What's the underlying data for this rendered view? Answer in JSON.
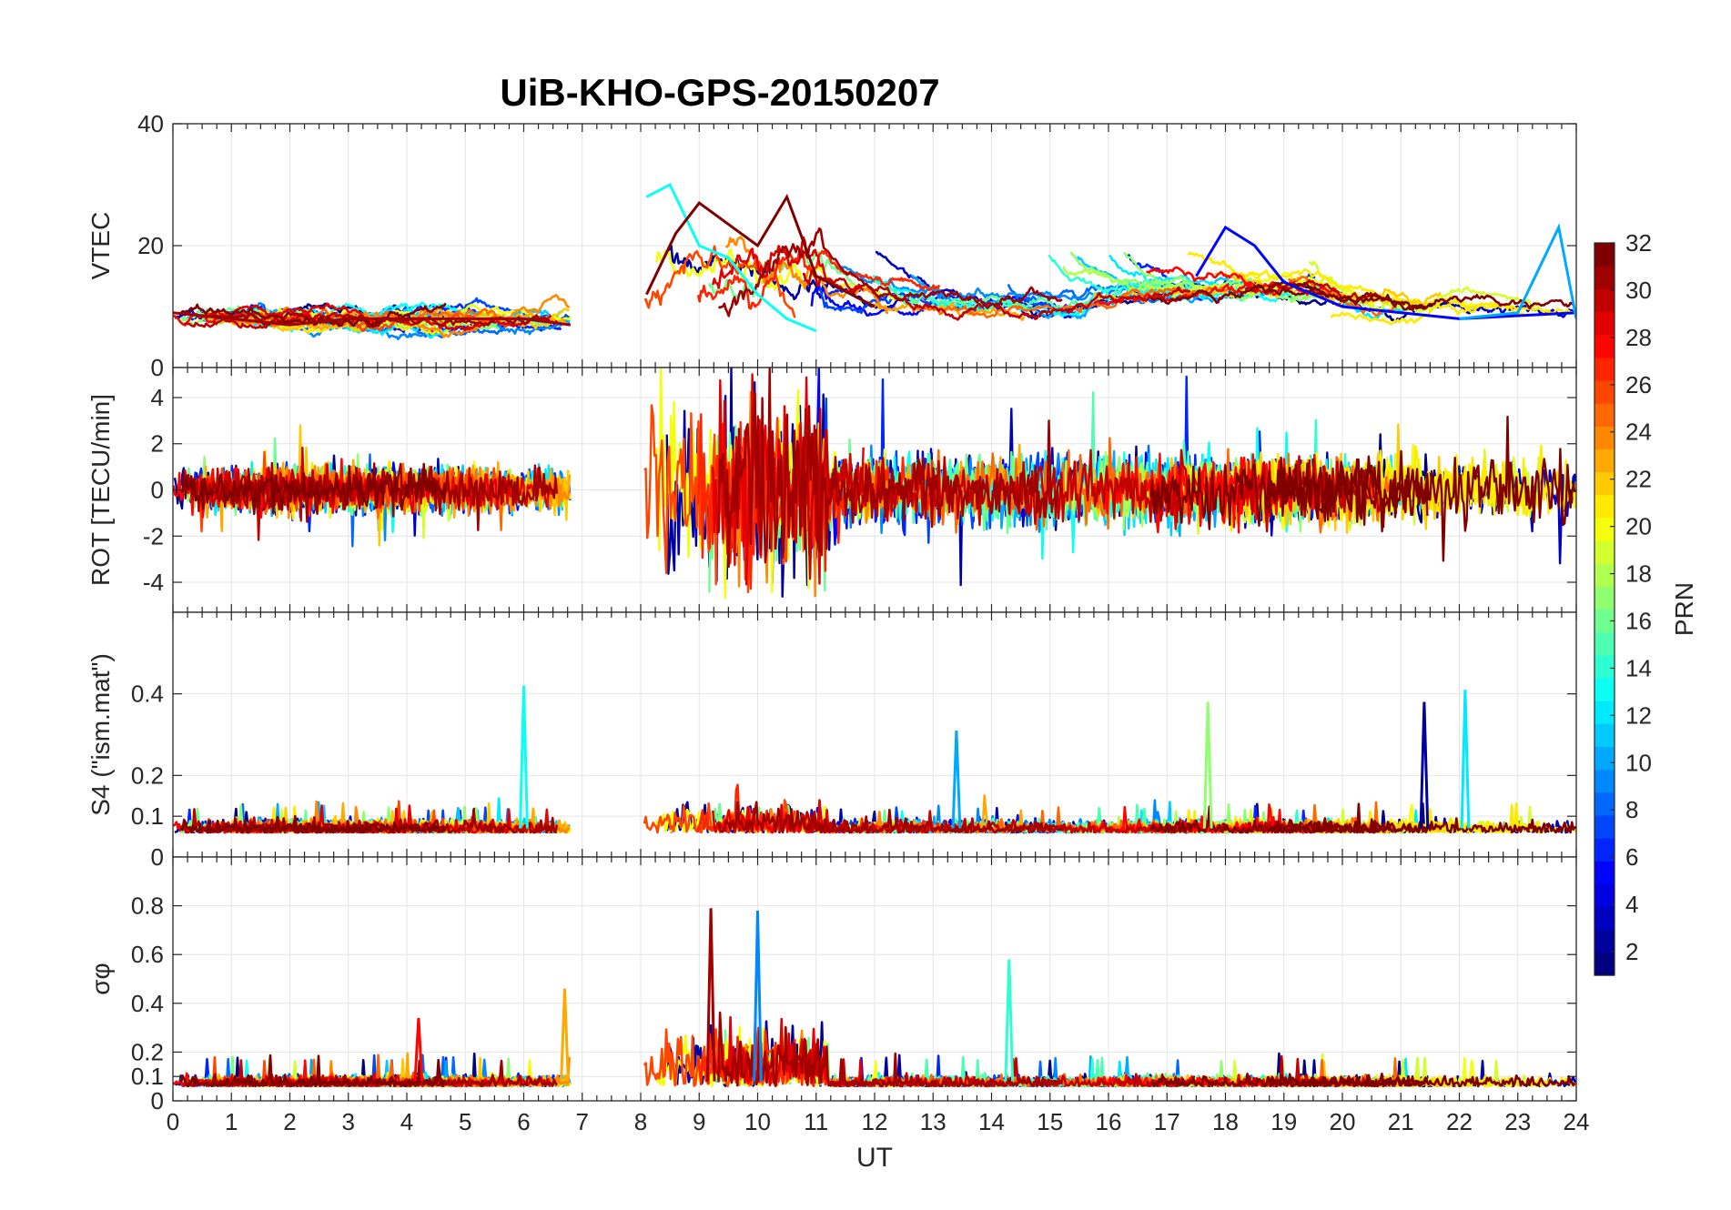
{
  "figure": {
    "title": "UiB-KHO-GPS-20150207",
    "xlabel": "UT",
    "x_ticks": [
      "0",
      "1",
      "2",
      "3",
      "4",
      "5",
      "6",
      "7",
      "8",
      "9",
      "10",
      "11",
      "12",
      "13",
      "14",
      "15",
      "16",
      "17",
      "18",
      "19",
      "20",
      "21",
      "22",
      "23",
      "24"
    ]
  },
  "colorbar": {
    "label": "PRN",
    "ticks": [
      "2",
      "4",
      "6",
      "8",
      "10",
      "12",
      "14",
      "16",
      "18",
      "20",
      "22",
      "24",
      "26",
      "28",
      "30",
      "32"
    ],
    "range": [
      1,
      32
    ],
    "colormap": "jet"
  },
  "chart_data": [
    {
      "type": "line",
      "panel": "vtec",
      "ylabel": "VTEC",
      "ylim": [
        0,
        40
      ],
      "yticks": [
        "0",
        "20",
        "40"
      ],
      "xlim": [
        0,
        24
      ],
      "grid": true,
      "gaps_hours": [
        [
          6.8,
          8.05
        ]
      ],
      "series_colored_by": "PRN",
      "sample_series": [
        {
          "prn": 31,
          "x": [
            0,
            1,
            2,
            3,
            4,
            5,
            6,
            6.8
          ],
          "y": [
            9,
            8,
            7,
            8,
            8,
            8,
            8,
            7
          ]
        },
        {
          "prn": 13,
          "x": [
            8.1,
            8.5,
            9,
            9.5,
            10,
            10.5,
            11
          ],
          "y": [
            28,
            30,
            20,
            18,
            12,
            8,
            6
          ]
        },
        {
          "prn": 32,
          "x": [
            8.1,
            8.6,
            9,
            10,
            10.5,
            11,
            12
          ],
          "y": [
            12,
            22,
            27,
            20,
            28,
            15,
            10
          ]
        },
        {
          "prn": 5,
          "x": [
            17.5,
            18,
            18.5,
            19,
            20,
            22,
            24
          ],
          "y": [
            15,
            23,
            20,
            14,
            10,
            8,
            9
          ]
        },
        {
          "prn": 10,
          "x": [
            22,
            23,
            23.7,
            24
          ],
          "y": [
            8,
            9,
            23,
            8
          ]
        }
      ]
    },
    {
      "type": "line",
      "panel": "rot",
      "ylabel": "ROT [TECU/min]",
      "ylim": [
        -5.3,
        5.3
      ],
      "yticks": [
        "-4",
        "-2",
        "0",
        "2",
        "4"
      ],
      "xlim": [
        0,
        24
      ],
      "grid": true,
      "gaps_hours": [
        [
          6.8,
          8.05
        ]
      ],
      "series_colored_by": "PRN",
      "note": "values fluctuate around 0 within about ±2 before 7 UT; saturated ±5 between 8 and 11 UT; about ±3 afterwards"
    },
    {
      "type": "line",
      "panel": "s4",
      "ylabel": "S4 (\"ism.mat\")",
      "ylim": [
        0,
        0.6
      ],
      "yticks": [
        "0",
        "0.1",
        "0.2",
        "0.4"
      ],
      "xlim": [
        0,
        24
      ],
      "grid": true,
      "gaps_hours": [
        [
          6.8,
          8.05
        ]
      ],
      "series_colored_by": "PRN",
      "peaks": [
        {
          "prn": 13,
          "x": 6.0,
          "y": 0.42
        },
        {
          "prn": 17,
          "x": 17.7,
          "y": 0.38
        },
        {
          "prn": 2,
          "x": 21.4,
          "y": 0.38
        },
        {
          "prn": 12,
          "x": 22.1,
          "y": 0.41
        },
        {
          "prn": 10,
          "x": 13.4,
          "y": 0.31
        }
      ]
    },
    {
      "type": "line",
      "panel": "sigma_phi",
      "ylabel": "σφ",
      "ylim": [
        0,
        1
      ],
      "yticks": [
        "0",
        "0.1",
        "0.2",
        "0.4",
        "0.6",
        "0.8"
      ],
      "xlim": [
        0,
        24
      ],
      "grid": true,
      "gaps_hours": [
        [
          6.8,
          8.05
        ]
      ],
      "series_colored_by": "PRN",
      "peaks": [
        {
          "prn": 31,
          "x": 9.2,
          "y": 0.79
        },
        {
          "prn": 9,
          "x": 10.0,
          "y": 0.78
        },
        {
          "prn": 14,
          "x": 14.3,
          "y": 0.58
        },
        {
          "prn": 23,
          "x": 6.7,
          "y": 0.46
        },
        {
          "prn": 28,
          "x": 4.2,
          "y": 0.34
        }
      ]
    }
  ]
}
